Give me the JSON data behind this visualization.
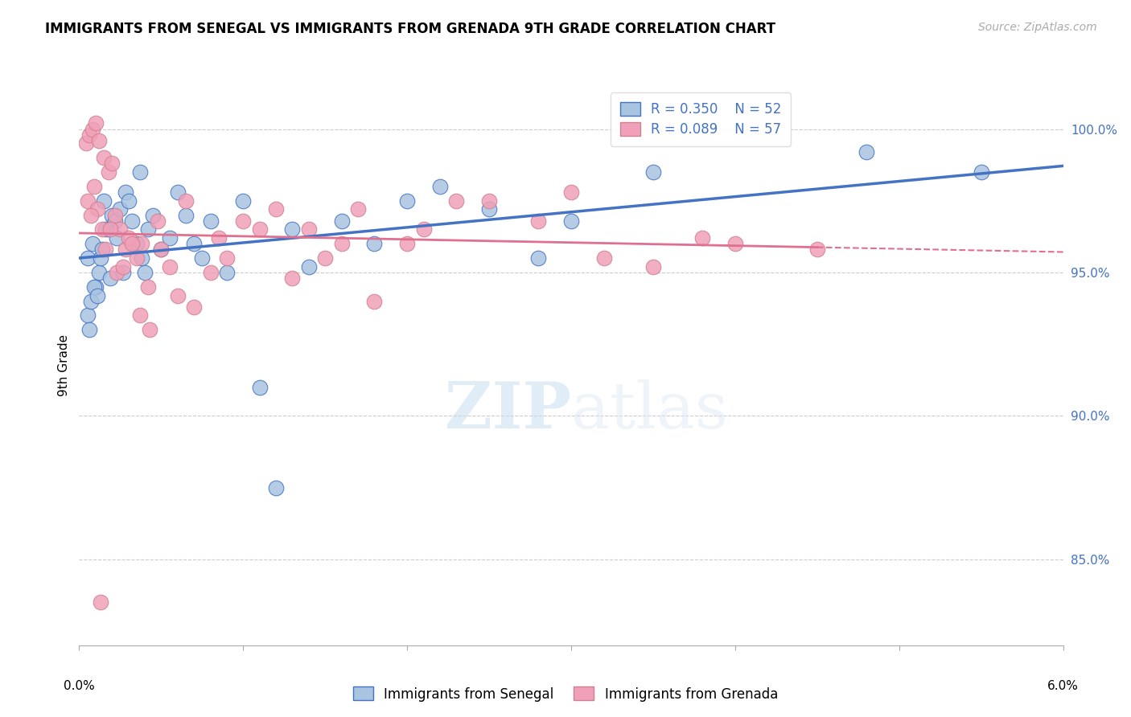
{
  "title": "IMMIGRANTS FROM SENEGAL VS IMMIGRANTS FROM GRENADA 9TH GRADE CORRELATION CHART",
  "source_text": "Source: ZipAtlas.com",
  "ylabel": "9th Grade",
  "xlim": [
    0.0,
    6.0
  ],
  "ylim": [
    82.0,
    101.5
  ],
  "yticks": [
    85.0,
    90.0,
    95.0,
    100.0
  ],
  "ytick_labels": [
    "85.0%",
    "90.0%",
    "95.0%",
    "100.0%"
  ],
  "legend_r_senegal": "R = 0.350",
  "legend_n_senegal": "N = 52",
  "legend_r_grenada": "R = 0.089",
  "legend_n_grenada": "N = 57",
  "color_senegal": "#a8c4e0",
  "color_grenada": "#f0a0b8",
  "color_senegal_line": "#4472c4",
  "color_grenada_line": "#e07090",
  "watermark_zip": "ZIP",
  "watermark_atlas": "atlas",
  "senegal_x": [
    0.05,
    0.08,
    0.1,
    0.12,
    0.05,
    0.07,
    0.09,
    0.13,
    0.15,
    0.18,
    0.2,
    0.22,
    0.25,
    0.28,
    0.3,
    0.35,
    0.38,
    0.4,
    0.42,
    0.45,
    0.5,
    0.55,
    0.6,
    0.65,
    0.7,
    0.75,
    0.8,
    0.9,
    1.0,
    1.1,
    1.2,
    1.4,
    1.6,
    1.8,
    2.0,
    2.2,
    2.5,
    2.8,
    3.0,
    3.5,
    0.06,
    0.11,
    0.14,
    0.16,
    0.19,
    0.23,
    0.27,
    0.32,
    0.37,
    1.3,
    4.8,
    5.5
  ],
  "senegal_y": [
    95.5,
    96.0,
    94.5,
    95.0,
    93.5,
    94.0,
    94.5,
    95.5,
    97.5,
    96.5,
    97.0,
    96.8,
    97.2,
    97.8,
    97.5,
    96.0,
    95.5,
    95.0,
    96.5,
    97.0,
    95.8,
    96.2,
    97.8,
    97.0,
    96.0,
    95.5,
    96.8,
    95.0,
    97.5,
    91.0,
    87.5,
    95.2,
    96.8,
    96.0,
    97.5,
    98.0,
    97.2,
    95.5,
    96.8,
    98.5,
    93.0,
    94.2,
    95.8,
    96.5,
    94.8,
    96.2,
    95.0,
    96.8,
    98.5,
    96.5,
    99.2,
    98.5
  ],
  "grenada_x": [
    0.04,
    0.06,
    0.08,
    0.1,
    0.12,
    0.15,
    0.18,
    0.2,
    0.22,
    0.25,
    0.28,
    0.3,
    0.35,
    0.38,
    0.42,
    0.48,
    0.55,
    0.65,
    0.8,
    0.9,
    1.0,
    1.2,
    1.4,
    1.6,
    1.8,
    2.1,
    2.5,
    3.0,
    3.5,
    4.0,
    0.05,
    0.09,
    0.11,
    0.14,
    0.16,
    0.19,
    0.23,
    0.27,
    0.32,
    0.37,
    0.43,
    0.5,
    0.6,
    0.7,
    0.85,
    1.1,
    1.3,
    1.5,
    1.7,
    2.0,
    2.3,
    2.8,
    3.2,
    3.8,
    4.5,
    0.07,
    0.13
  ],
  "grenada_y": [
    99.5,
    99.8,
    100.0,
    100.2,
    99.6,
    99.0,
    98.5,
    98.8,
    97.0,
    96.5,
    95.8,
    96.2,
    95.5,
    96.0,
    94.5,
    96.8,
    95.2,
    97.5,
    95.0,
    95.5,
    96.8,
    97.2,
    96.5,
    96.0,
    94.0,
    96.5,
    97.5,
    97.8,
    95.2,
    96.0,
    97.5,
    98.0,
    97.2,
    96.5,
    95.8,
    96.5,
    95.0,
    95.2,
    96.0,
    93.5,
    93.0,
    95.8,
    94.2,
    93.8,
    96.2,
    96.5,
    94.8,
    95.5,
    97.2,
    96.0,
    97.5,
    96.8,
    95.5,
    96.2,
    95.8,
    97.0,
    83.5
  ]
}
